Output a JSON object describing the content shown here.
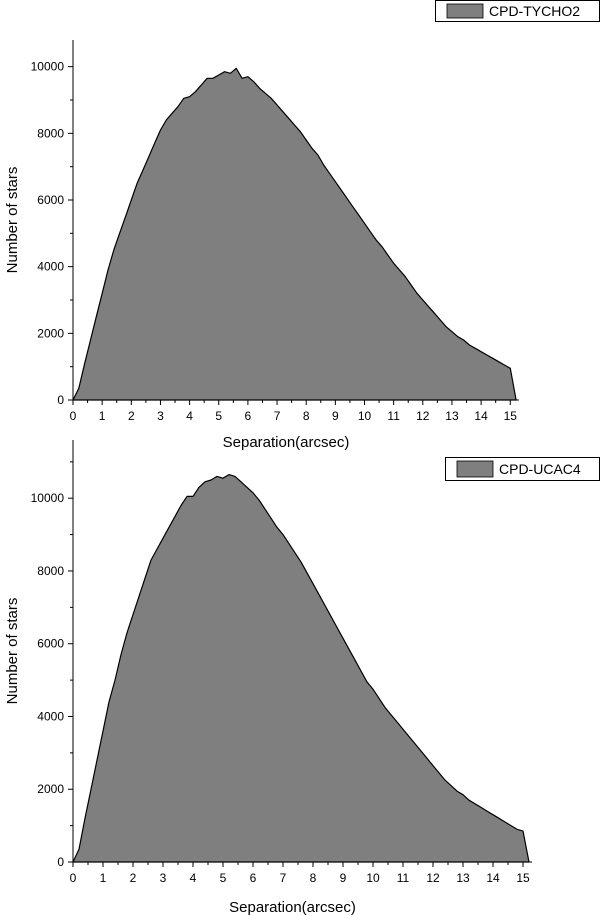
{
  "chart_data": [
    {
      "type": "area",
      "legend": "CPD-TYCHO2",
      "legend_position": "top-right",
      "xlabel": "Separation(arcsec)",
      "ylabel": "Number of stars",
      "xlim": [
        0,
        15.3
      ],
      "ylim": [
        0,
        10800
      ],
      "xticks": [
        "0",
        "1",
        "2",
        "3",
        "4",
        "5",
        "6",
        "7",
        "8",
        "9",
        "10",
        "11",
        "12",
        "13",
        "14",
        "15"
      ],
      "yticks": [
        "0",
        "2000",
        "4000",
        "6000",
        "8000",
        "10000"
      ],
      "color": "#7f7f7f",
      "x": [
        0,
        0.2,
        0.4,
        0.6,
        0.8,
        1.0,
        1.2,
        1.4,
        1.6,
        1.8,
        2.0,
        2.2,
        2.4,
        2.6,
        2.8,
        3.0,
        3.2,
        3.4,
        3.6,
        3.8,
        4.0,
        4.2,
        4.4,
        4.6,
        4.8,
        5.0,
        5.2,
        5.4,
        5.6,
        5.8,
        6.0,
        6.2,
        6.4,
        6.6,
        6.8,
        7.0,
        7.2,
        7.4,
        7.6,
        7.8,
        8.0,
        8.2,
        8.4,
        8.6,
        8.8,
        9.0,
        9.2,
        9.4,
        9.6,
        9.8,
        10.0,
        10.2,
        10.4,
        10.6,
        10.8,
        11.0,
        11.2,
        11.4,
        11.6,
        11.8,
        12.0,
        12.2,
        12.4,
        12.6,
        12.8,
        13.0,
        13.2,
        13.4,
        13.6,
        13.8,
        14.0,
        14.2,
        14.4,
        14.6,
        14.8,
        15.0,
        15.2
      ],
      "y": [
        0,
        350,
        1100,
        1800,
        2500,
        3200,
        3900,
        4500,
        5000,
        5500,
        6000,
        6500,
        6900,
        7300,
        7700,
        8100,
        8400,
        8600,
        8800,
        9050,
        9100,
        9250,
        9450,
        9650,
        9650,
        9750,
        9850,
        9800,
        9950,
        9650,
        9700,
        9550,
        9350,
        9200,
        9050,
        8850,
        8650,
        8450,
        8250,
        8050,
        7800,
        7550,
        7350,
        7050,
        6800,
        6550,
        6300,
        6050,
        5800,
        5550,
        5300,
        5050,
        4800,
        4600,
        4350,
        4100,
        3900,
        3700,
        3450,
        3200,
        3000,
        2800,
        2600,
        2400,
        2200,
        2050,
        1900,
        1800,
        1650,
        1550,
        1450,
        1350,
        1250,
        1150,
        1050,
        950,
        0
      ]
    },
    {
      "type": "area",
      "legend": "CPD-UCAC4",
      "legend_position": "top-right",
      "xlabel": "Separation(arcsec)",
      "ylabel": "Number of stars",
      "xlim": [
        0,
        15.3
      ],
      "ylim": [
        0,
        11600
      ],
      "xticks": [
        "0",
        "1",
        "2",
        "3",
        "4",
        "5",
        "6",
        "7",
        "8",
        "9",
        "10",
        "11",
        "12",
        "13",
        "14",
        "15"
      ],
      "yticks": [
        "0",
        "2000",
        "4000",
        "6000",
        "8000",
        "10000"
      ],
      "color": "#7f7f7f",
      "x": [
        0,
        0.2,
        0.4,
        0.6,
        0.8,
        1.0,
        1.2,
        1.4,
        1.6,
        1.8,
        2.0,
        2.2,
        2.4,
        2.6,
        2.8,
        3.0,
        3.2,
        3.4,
        3.6,
        3.8,
        4.0,
        4.2,
        4.4,
        4.6,
        4.8,
        5.0,
        5.2,
        5.4,
        5.6,
        5.8,
        6.0,
        6.2,
        6.4,
        6.6,
        6.8,
        7.0,
        7.2,
        7.4,
        7.6,
        7.8,
        8.0,
        8.2,
        8.4,
        8.6,
        8.8,
        9.0,
        9.2,
        9.4,
        9.6,
        9.8,
        10.0,
        10.2,
        10.4,
        10.6,
        10.8,
        11.0,
        11.2,
        11.4,
        11.6,
        11.8,
        12.0,
        12.2,
        12.4,
        12.6,
        12.8,
        13.0,
        13.2,
        13.4,
        13.6,
        13.8,
        14.0,
        14.2,
        14.4,
        14.6,
        14.8,
        15.0,
        15.2
      ],
      "y": [
        0,
        350,
        1200,
        2000,
        2800,
        3600,
        4400,
        5000,
        5700,
        6300,
        6800,
        7300,
        7800,
        8300,
        8600,
        8900,
        9200,
        9500,
        9800,
        10050,
        10050,
        10300,
        10450,
        10500,
        10600,
        10550,
        10650,
        10600,
        10450,
        10300,
        10150,
        9950,
        9700,
        9450,
        9200,
        9000,
        8750,
        8500,
        8250,
        7950,
        7650,
        7350,
        7050,
        6750,
        6450,
        6150,
        5850,
        5550,
        5250,
        4950,
        4750,
        4500,
        4250,
        4050,
        3850,
        3650,
        3450,
        3250,
        3050,
        2850,
        2650,
        2450,
        2250,
        2100,
        1950,
        1850,
        1700,
        1600,
        1500,
        1400,
        1300,
        1200,
        1100,
        1000,
        900,
        850,
        0
      ]
    }
  ]
}
